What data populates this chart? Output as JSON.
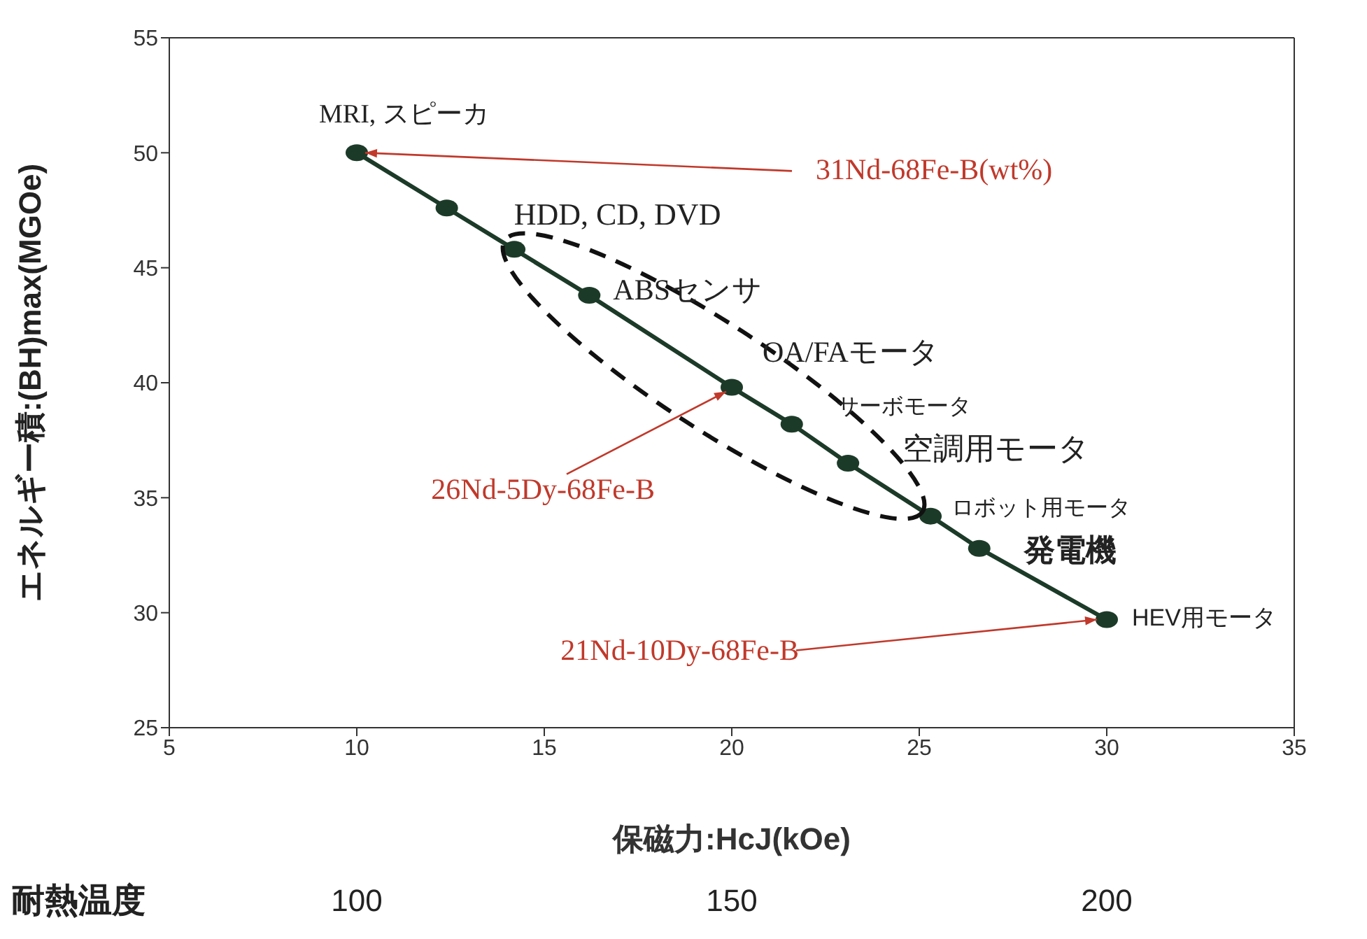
{
  "chart_data": {
    "type": "line",
    "xlabel": "保磁力:HcJ(kOe)",
    "ylabel": "エネルギー積:(BH)max(MGOe)",
    "x2label": "耐熱温度",
    "x": [
      10,
      12.4,
      14.2,
      16.2,
      20,
      21.6,
      23.1,
      25.3,
      26.6,
      30
    ],
    "series": [
      {
        "color": "#1c3a28",
        "values": [
          50,
          47.6,
          45.8,
          43.8,
          39.8,
          38.2,
          36.5,
          34.2,
          32.8,
          29.7
        ]
      }
    ],
    "xlim": [
      5,
      35
    ],
    "xticks": [
      5,
      10,
      15,
      20,
      25,
      30,
      35
    ],
    "ylim": [
      25,
      55
    ],
    "yticks": [
      25,
      30,
      35,
      40,
      45,
      50,
      55
    ],
    "x2lim": [
      75,
      225
    ],
    "x2ticks": [
      100,
      150,
      200
    ],
    "marker": "circle",
    "line_style": "solid",
    "annotations": [
      {
        "text": "MRI, スピーカ",
        "x": 10,
        "y": 50
      },
      {
        "text": "HDD, CD, DVD",
        "x": 12.4,
        "y": 47.6
      },
      {
        "text": "ABSセンサ",
        "x": 16.2,
        "y": 43.8
      },
      {
        "text": "OA/FAモータ",
        "x": 20,
        "y": 39.8
      },
      {
        "text": "サーボモータ",
        "x": 21.6,
        "y": 38.2
      },
      {
        "text": "空調用モータ",
        "x": 23.1,
        "y": 36.5
      },
      {
        "text": "ロボット用モータ",
        "x": 25.3,
        "y": 34.2
      },
      {
        "text": "発電機",
        "x": 26.6,
        "y": 32.8
      },
      {
        "text": "HEV用モータ",
        "x": 30,
        "y": 29.7
      },
      {
        "text": "31Nd-68Fe-B(wt%)",
        "x": 10,
        "y": 50
      },
      {
        "text": "26Nd-5Dy-68Fe-B",
        "x": 20,
        "y": 39.8
      },
      {
        "text": "21Nd-10Dy-68Fe-B",
        "x": 30,
        "y": 29.7
      }
    ]
  }
}
